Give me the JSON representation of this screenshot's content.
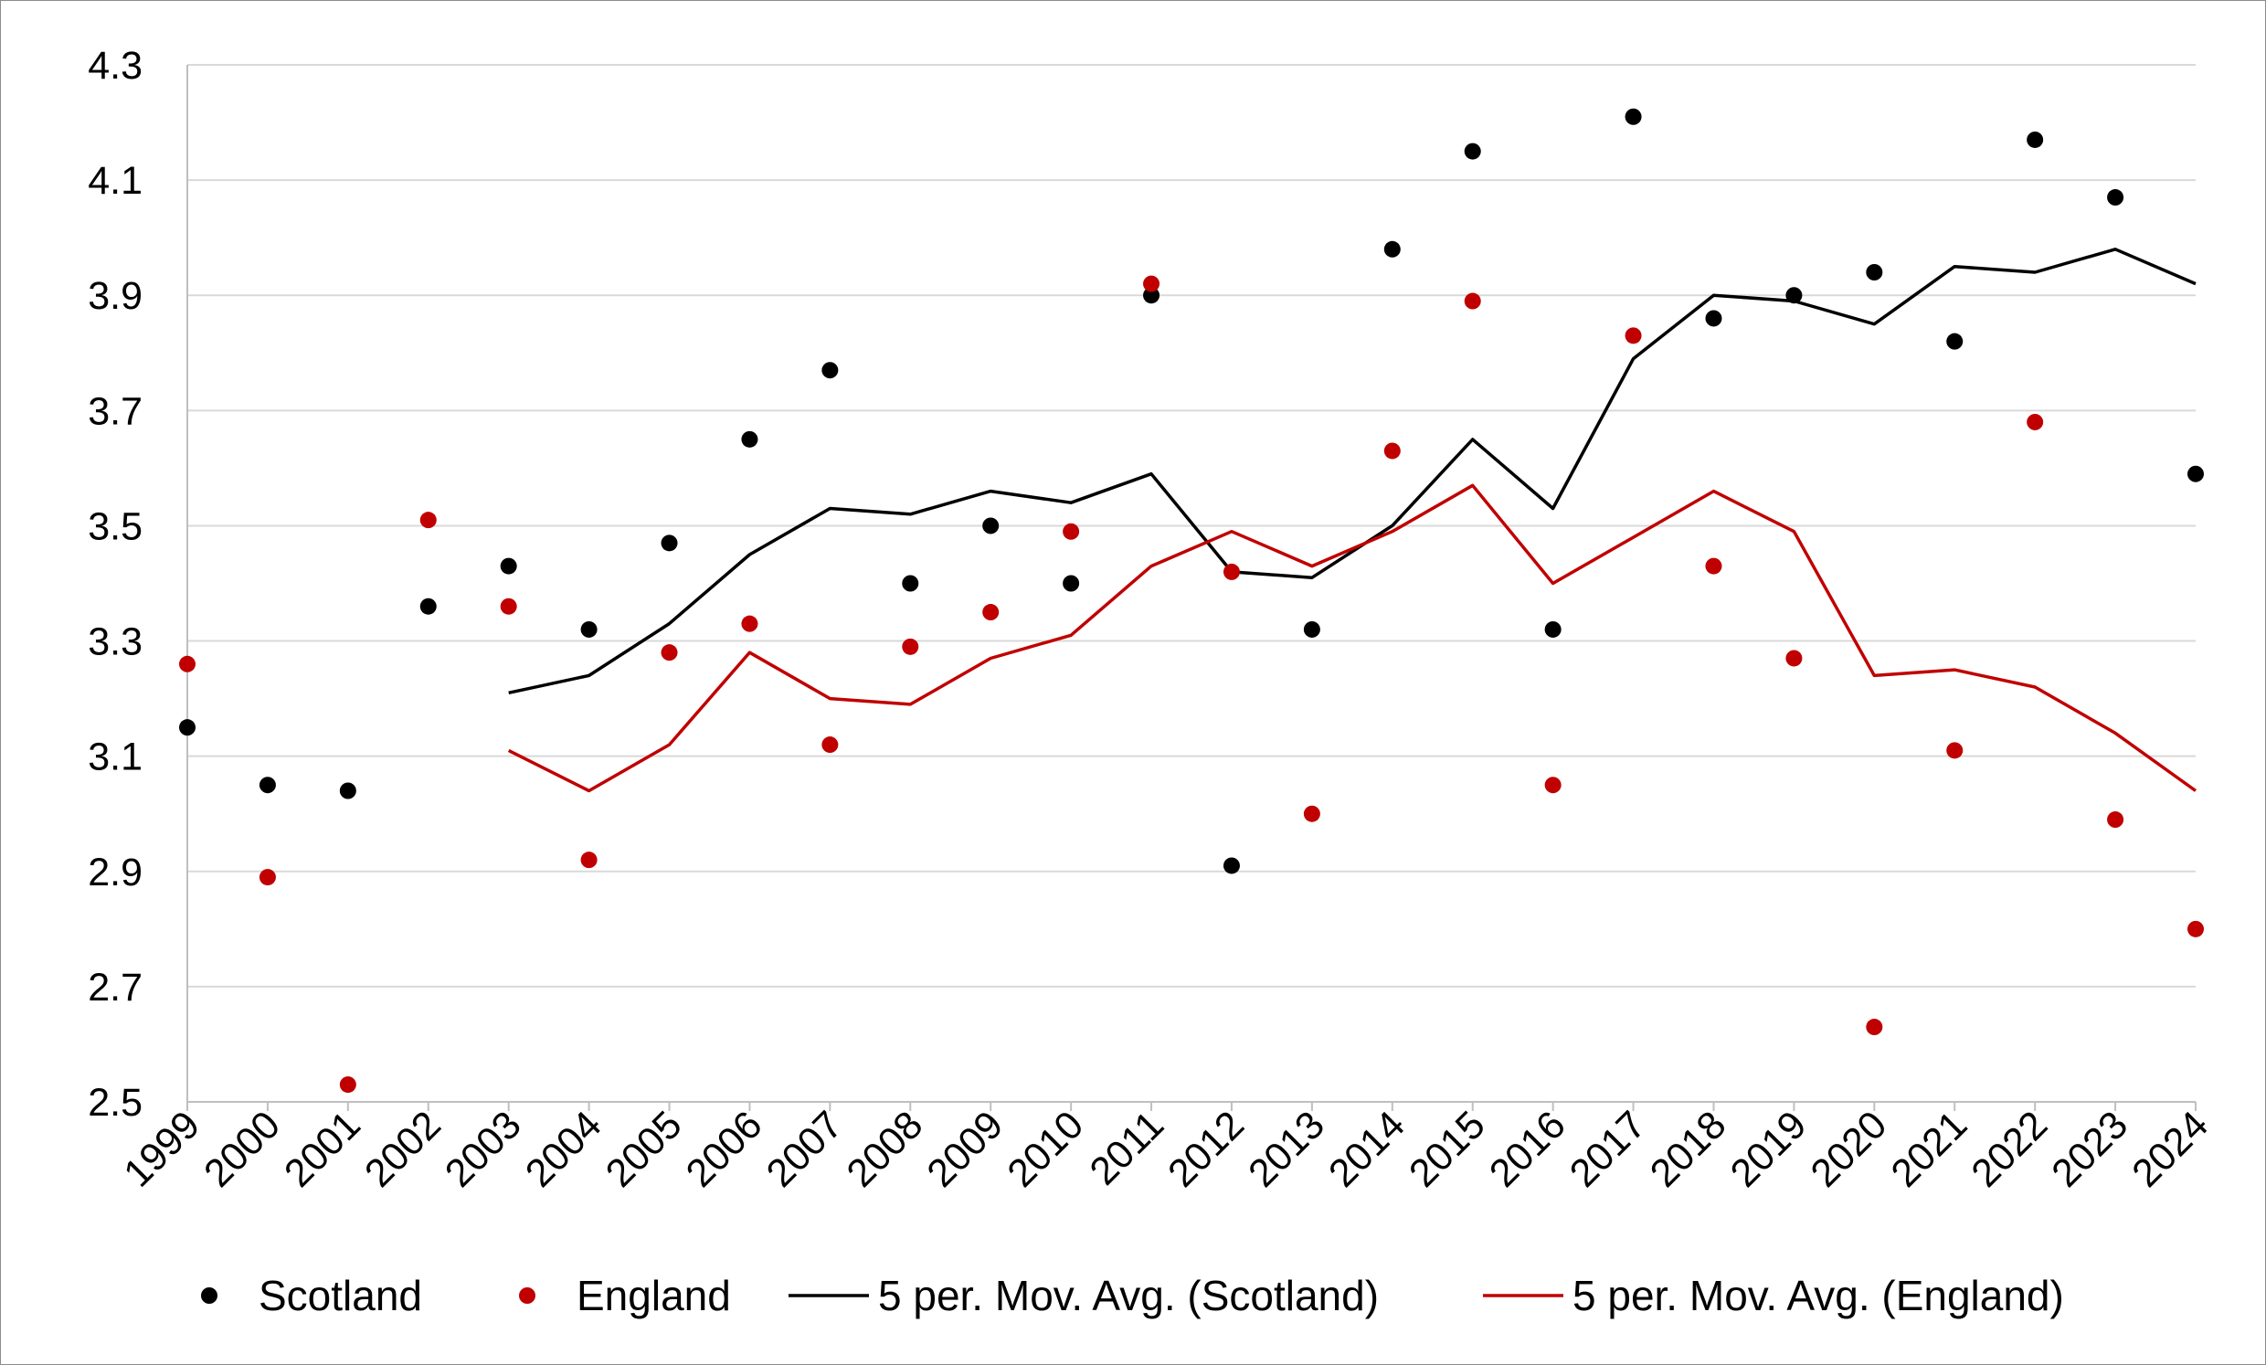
{
  "chart_data": {
    "type": "scatter",
    "title": "",
    "xlabel": "",
    "ylabel": "",
    "x": [
      1999,
      2000,
      2001,
      2002,
      2003,
      2004,
      2005,
      2006,
      2007,
      2008,
      2009,
      2010,
      2011,
      2012,
      2013,
      2014,
      2015,
      2016,
      2017,
      2018,
      2019,
      2020,
      2021,
      2022,
      2023,
      2024
    ],
    "ylim": [
      2.5,
      4.3
    ],
    "yticks": [
      2.5,
      2.7,
      2.9,
      3.1,
      3.3,
      3.5,
      3.7,
      3.9,
      4.1,
      4.3
    ],
    "ytick_labels": [
      "2.5",
      "2.7",
      "2.9",
      "3.1",
      "3.3",
      "3.5",
      "3.7",
      "3.9",
      "4.1",
      "4.3"
    ],
    "xtick_labels": [
      "1999",
      "2000",
      "2001",
      "2002",
      "2003",
      "2004",
      "2005",
      "2006",
      "2007",
      "2008",
      "2009",
      "2010",
      "2011",
      "2012",
      "2013",
      "2014",
      "2015",
      "2016",
      "2017",
      "2018",
      "2019",
      "2020",
      "2021",
      "2022",
      "2023",
      "2024"
    ],
    "grid": "horizontal",
    "legend_position": "bottom",
    "series": [
      {
        "name": "Scotland",
        "kind": "points",
        "color": "#000000",
        "values": [
          3.15,
          3.05,
          3.04,
          3.36,
          3.43,
          3.32,
          3.47,
          3.65,
          3.77,
          3.4,
          3.5,
          3.4,
          3.9,
          2.91,
          3.32,
          3.98,
          4.15,
          3.32,
          4.21,
          3.86,
          3.9,
          3.94,
          3.82,
          4.17,
          4.07,
          3.59
        ]
      },
      {
        "name": "England",
        "kind": "points",
        "color": "#c00000",
        "values": [
          3.26,
          2.89,
          2.53,
          3.51,
          3.36,
          2.92,
          3.28,
          3.33,
          3.12,
          3.29,
          3.35,
          3.49,
          3.92,
          3.42,
          3.0,
          3.63,
          3.89,
          3.05,
          3.83,
          3.43,
          3.27,
          2.63,
          3.11,
          3.68,
          2.99,
          2.8
        ]
      },
      {
        "name": "5 per. Mov. Avg. (Scotland)",
        "kind": "line",
        "color": "#000000",
        "values": [
          null,
          null,
          null,
          null,
          3.21,
          3.24,
          3.33,
          3.45,
          3.53,
          3.52,
          3.56,
          3.54,
          3.59,
          3.42,
          3.41,
          3.5,
          3.65,
          3.53,
          3.79,
          3.9,
          3.89,
          3.85,
          3.95,
          3.94,
          3.98,
          3.92
        ]
      },
      {
        "name": "5 per. Mov. Avg. (England)",
        "kind": "line",
        "color": "#c00000",
        "values": [
          null,
          null,
          null,
          null,
          3.11,
          3.04,
          3.12,
          3.28,
          3.2,
          3.19,
          3.27,
          3.31,
          3.43,
          3.49,
          3.43,
          3.49,
          3.57,
          3.4,
          3.48,
          3.56,
          3.49,
          3.24,
          3.25,
          3.22,
          3.14,
          3.04
        ]
      }
    ]
  }
}
